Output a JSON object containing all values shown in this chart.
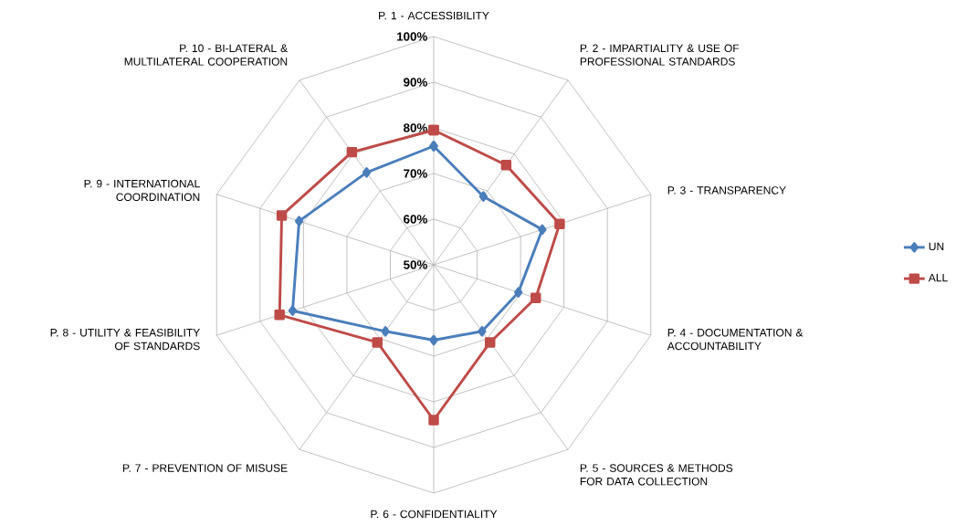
{
  "chart_data": {
    "type": "radar",
    "categories": [
      "P. 1 - ACCESSIBILITY",
      "P. 2 - IMPARTIALITY & USE OF PROFESSIONAL STANDARDS",
      "P. 3 - TRANSPARENCY",
      "P. 4 - DOCUMENTATION & ACCOUNTABILITY",
      "P. 5 - SOURCES & METHODS FOR DATA COLLECTION",
      "P. 6 - CONFIDENTIALITY",
      "P. 7 - PREVENTION OF MISUSE",
      "P. 8 - UTILITY & FEASIBILITY OF STANDARDS",
      "P. 9 - INTERNATIONAL COORDINATION",
      "P. 10 - BI-LATERAL & MULTILATERAL COOPERATION"
    ],
    "series": [
      {
        "name": "UN",
        "color": "#4a7ebb",
        "marker": "diamond",
        "values": [
          76,
          68.5,
          75,
          69.5,
          68,
          66.5,
          68,
          82.5,
          81,
          75
        ]
      },
      {
        "name": "ALL",
        "color": "#be4b48",
        "marker": "square",
        "values": [
          79.5,
          77,
          79,
          73.5,
          71,
          84,
          71,
          85.5,
          85,
          80.5
        ]
      }
    ],
    "ylim": [
      50,
      100
    ],
    "yticks": [
      {
        "value": 50,
        "label": "50%"
      },
      {
        "value": 60,
        "label": "60%"
      },
      {
        "value": 70,
        "label": "70%"
      },
      {
        "value": 80,
        "label": "80%"
      },
      {
        "value": 90,
        "label": "90%"
      },
      {
        "value": 100,
        "label": "100%"
      }
    ],
    "grid": true,
    "legend": "right",
    "line_style": "solid"
  }
}
